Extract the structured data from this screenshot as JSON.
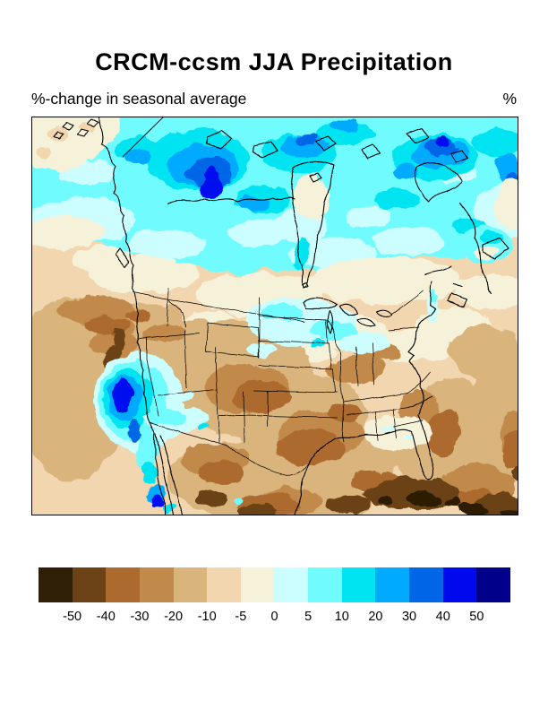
{
  "header": {
    "title": "CRCM-ccsm JJA Precipitation",
    "subtitle": "%-change in seasonal average",
    "units_label": "%"
  },
  "chart_data": {
    "type": "heatmap",
    "variant": "filled-contour-geographic-map",
    "title": "CRCM-ccsm JJA Precipitation",
    "subtitle": "%-change in seasonal average",
    "units": "%",
    "region_shown": "North America (Canada, United States, Mexico) with coastlines and state/province borders",
    "colorbar": {
      "orientation": "horizontal",
      "position": "below map",
      "levels": [
        -50,
        -40,
        -30,
        -20,
        -10,
        -5,
        0,
        5,
        10,
        20,
        30,
        40,
        50
      ],
      "tick_labels": [
        "-50",
        "-40",
        "-30",
        "-20",
        "-10",
        "-5",
        "0",
        "5",
        "10",
        "20",
        "30",
        "40",
        "50"
      ],
      "cell_colors": [
        "#2f1f06",
        "#6b4317",
        "#ad6a2e",
        "#c18a4b",
        "#d9b47c",
        "#f2d6b0",
        "#f6f2da",
        "#ccfdff",
        "#70fbff",
        "#00e4f2",
        "#00aaff",
        "#0066e8",
        "#0008ee",
        "#00008b"
      ]
    },
    "features": [
      {
        "region": "Arctic / northern Canada",
        "sign": "positive",
        "approx_range_pct": "+5 to +50"
      },
      {
        "region": "Hudson Bay surroundings",
        "sign": "positive",
        "approx_range_pct": "+5 to +30"
      },
      {
        "region": "Western and central United States",
        "sign": "negative",
        "approx_range_pct": "-5 to -30"
      },
      {
        "region": "California Sierra / coast ranges",
        "sign": "negative",
        "approx_range_pct": "-30 to -50"
      },
      {
        "region": "Nevada / southern California / Baja",
        "sign": "positive",
        "approx_range_pct": "+10 to +50"
      },
      {
        "region": "Northern Great Plains (MT, Dakotas)",
        "sign": "positive",
        "approx_range_pct": "0 to +10"
      },
      {
        "region": "Eastern United States",
        "sign": "negative",
        "approx_range_pct": "0 to -10"
      },
      {
        "region": "Gulf of Mexico / Mexico / Caribbean",
        "sign": "negative",
        "approx_range_pct": "-30 to < -50"
      }
    ]
  }
}
